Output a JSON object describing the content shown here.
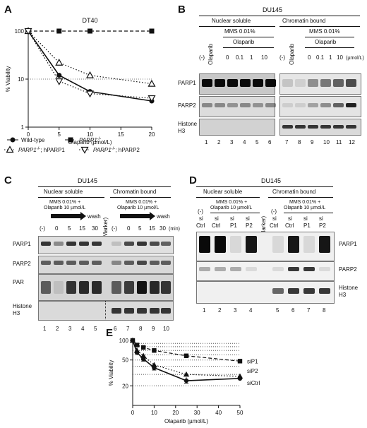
{
  "panels": {
    "A": "A",
    "B": "B",
    "C": "C",
    "D": "D",
    "E": "E"
  },
  "chart_data": [
    {
      "panel": "A",
      "type": "line",
      "title": "DT40",
      "xlabel": "Olaparib (µmol/L)",
      "ylabel": "% Viability",
      "yscale": "log",
      "xlim": [
        0,
        20
      ],
      "ylim": [
        1,
        100
      ],
      "xticks": [
        "0",
        "5",
        "10",
        "15",
        "20"
      ],
      "yticks": [
        "1",
        "10",
        "100"
      ],
      "x": [
        0,
        5,
        10,
        20
      ],
      "series": [
        {
          "name": "Wild-type",
          "values": [
            100,
            12,
            5.5,
            3.5
          ],
          "marker": "filled-circle",
          "line": "solid"
        },
        {
          "name": "PARP1",
          "sup": "-/-",
          "values": [
            100,
            100,
            100,
            100
          ],
          "marker": "filled-square",
          "line": "dashed"
        },
        {
          "name": "PARP1",
          "sup": "-/-",
          "suffix": "; hPARP1",
          "values": [
            100,
            22,
            12,
            8
          ],
          "marker": "open-triangle",
          "line": "dotted"
        },
        {
          "name": "PARP1",
          "sup": "-/-",
          "suffix": "; hPARP2",
          "values": [
            100,
            9,
            5,
            4
          ],
          "marker": "open-inverted-triangle",
          "line": "dotted"
        }
      ]
    },
    {
      "panel": "E",
      "type": "line",
      "xlabel": "Olaparib (µmol/L)",
      "ylabel": "% Viability",
      "yscale": "log",
      "xlim": [
        0,
        50
      ],
      "ylim": [
        10,
        100
      ],
      "xticks": [
        "0",
        "10",
        "20",
        "30",
        "40",
        "50"
      ],
      "yticks": [
        "20",
        "50",
        "100"
      ],
      "x": [
        0,
        2,
        5,
        10,
        25,
        50
      ],
      "series": [
        {
          "name": "siP1",
          "values": [
            100,
            85,
            78,
            70,
            58,
            48
          ],
          "marker": "filled-square",
          "line": "dashed"
        },
        {
          "name": "siP2",
          "values": [
            100,
            70,
            58,
            42,
            30,
            28
          ],
          "marker": "filled-triangle",
          "line": "dotted"
        },
        {
          "name": "siCtrl",
          "values": [
            100,
            65,
            52,
            38,
            24,
            26
          ],
          "marker": "filled-circle",
          "line": "solid"
        }
      ]
    }
  ],
  "panelB": {
    "cell": "DU145",
    "fractions": [
      "Nuclear soluble",
      "Chromatin bound"
    ],
    "minus": "(-)",
    "olaparib": "Olaparib",
    "mms": "MMS 0.01%",
    "doses": [
      "0",
      "0.1",
      "1",
      "10"
    ],
    "unit": "(µmol/L)",
    "rows": [
      "PARP1",
      "PARP2",
      "Histone",
      "H3"
    ],
    "lanes": [
      "1",
      "2",
      "3",
      "4",
      "5",
      "6",
      "7",
      "8",
      "9",
      "10",
      "11",
      "12"
    ]
  },
  "panelC": {
    "cell": "DU145",
    "fractions": [
      "Nuclear soluble",
      "Chromatin bound"
    ],
    "treat_line1": "MMS 0.01% +",
    "treat_line2": "Olaparib 10 µmol/L",
    "wash": "wash",
    "marker": "(Marker)",
    "minus": "(-)",
    "times": [
      "0",
      "5",
      "15",
      "30"
    ],
    "unit": "(min)",
    "rows": [
      "PARP1",
      "PARP2",
      "PAR",
      "Histone",
      "H3"
    ],
    "lanes": [
      "1",
      "2",
      "3",
      "4",
      "5",
      "6",
      "7",
      "8",
      "9",
      "10"
    ]
  },
  "panelD": {
    "cell": "DU145",
    "fractions": [
      "Nuclear soluble",
      "Chromatin bound"
    ],
    "treat_line1": "MMS 0.01% +",
    "treat_line2": "Olaparib 10 µmol/L",
    "marker": "(Marker)",
    "minus": "(-)",
    "si": "si",
    "targets": [
      "Ctrl",
      "Ctrl",
      "P1",
      "P2"
    ],
    "rows": [
      "PARP1",
      "PARP2",
      "Histone",
      "H3"
    ],
    "lanes": [
      "1",
      "2",
      "3",
      "4",
      "5",
      "6",
      "7",
      "8"
    ]
  }
}
